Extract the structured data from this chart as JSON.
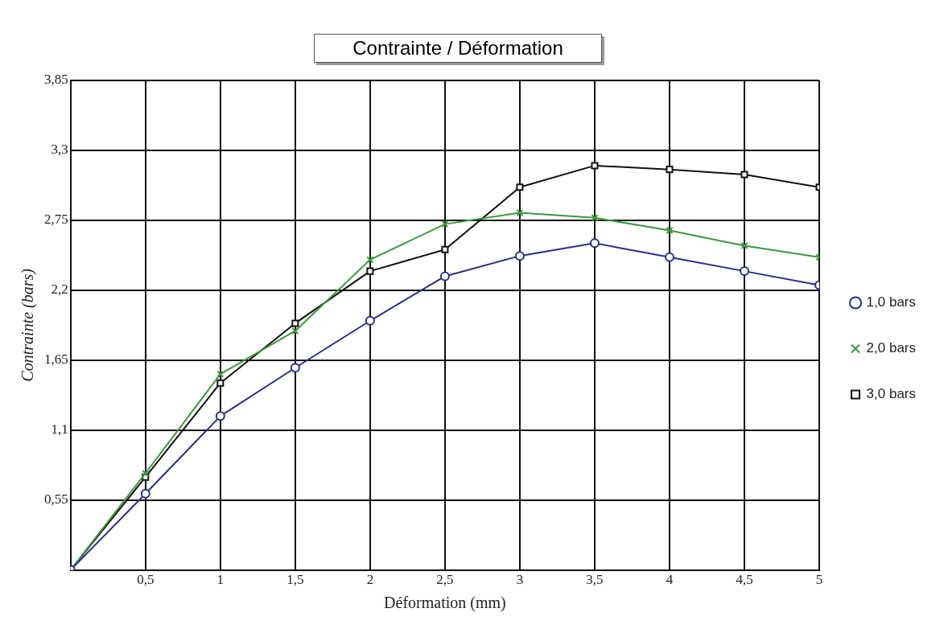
{
  "chart_data": {
    "type": "line",
    "title": "Contrainte / Déformation",
    "xlabel": "Déformation (mm)",
    "ylabel": "Contrainte (bars)",
    "x": [
      0,
      0.5,
      1,
      1.5,
      2,
      2.5,
      3,
      3.5,
      4,
      4.5,
      5
    ],
    "series": [
      {
        "name": "1,0 bars",
        "color": "#2b2b8c",
        "marker": "circle",
        "values": [
          0,
          0.6,
          1.21,
          1.59,
          1.96,
          2.31,
          2.47,
          2.57,
          2.46,
          2.35,
          2.24
        ]
      },
      {
        "name": "2,0 bars",
        "color": "#3a9a3a",
        "marker": "cross",
        "values": [
          0,
          0.76,
          1.54,
          1.88,
          2.44,
          2.72,
          2.81,
          2.77,
          2.67,
          2.55,
          2.46
        ]
      },
      {
        "name": "3,0 bars",
        "color": "#111111",
        "marker": "square",
        "values": [
          0,
          0.73,
          1.47,
          1.94,
          2.35,
          2.52,
          3.01,
          3.18,
          3.15,
          3.11,
          3.01
        ]
      }
    ],
    "xlim": [
      0,
      5
    ],
    "xticks": [
      {
        "value": 0,
        "label": null
      },
      {
        "value": 0.5,
        "label": "0,5"
      },
      1,
      {
        "value": 1.5,
        "label": "1,5"
      },
      2,
      {
        "value": 2.5,
        "label": "2,5"
      },
      3,
      {
        "value": 3.5,
        "label": "3,5"
      },
      4,
      {
        "value": 4.5,
        "label": "4,5"
      },
      5
    ],
    "ylim": [
      0,
      3.85
    ],
    "yticks": [
      {
        "value": 0,
        "label": null
      },
      {
        "value": 0.55,
        "label": "0,55"
      },
      {
        "value": 1.1,
        "label": "1,1"
      },
      {
        "value": 1.65,
        "label": "1,65"
      },
      {
        "value": 2.2,
        "label": "2,2"
      },
      {
        "value": 2.75,
        "label": "2,75"
      },
      {
        "value": 3.3,
        "label": "3,3"
      },
      {
        "value": 3.85,
        "label": "3,85"
      }
    ],
    "grid": true,
    "legend": "right",
    "line_style": "solid"
  }
}
